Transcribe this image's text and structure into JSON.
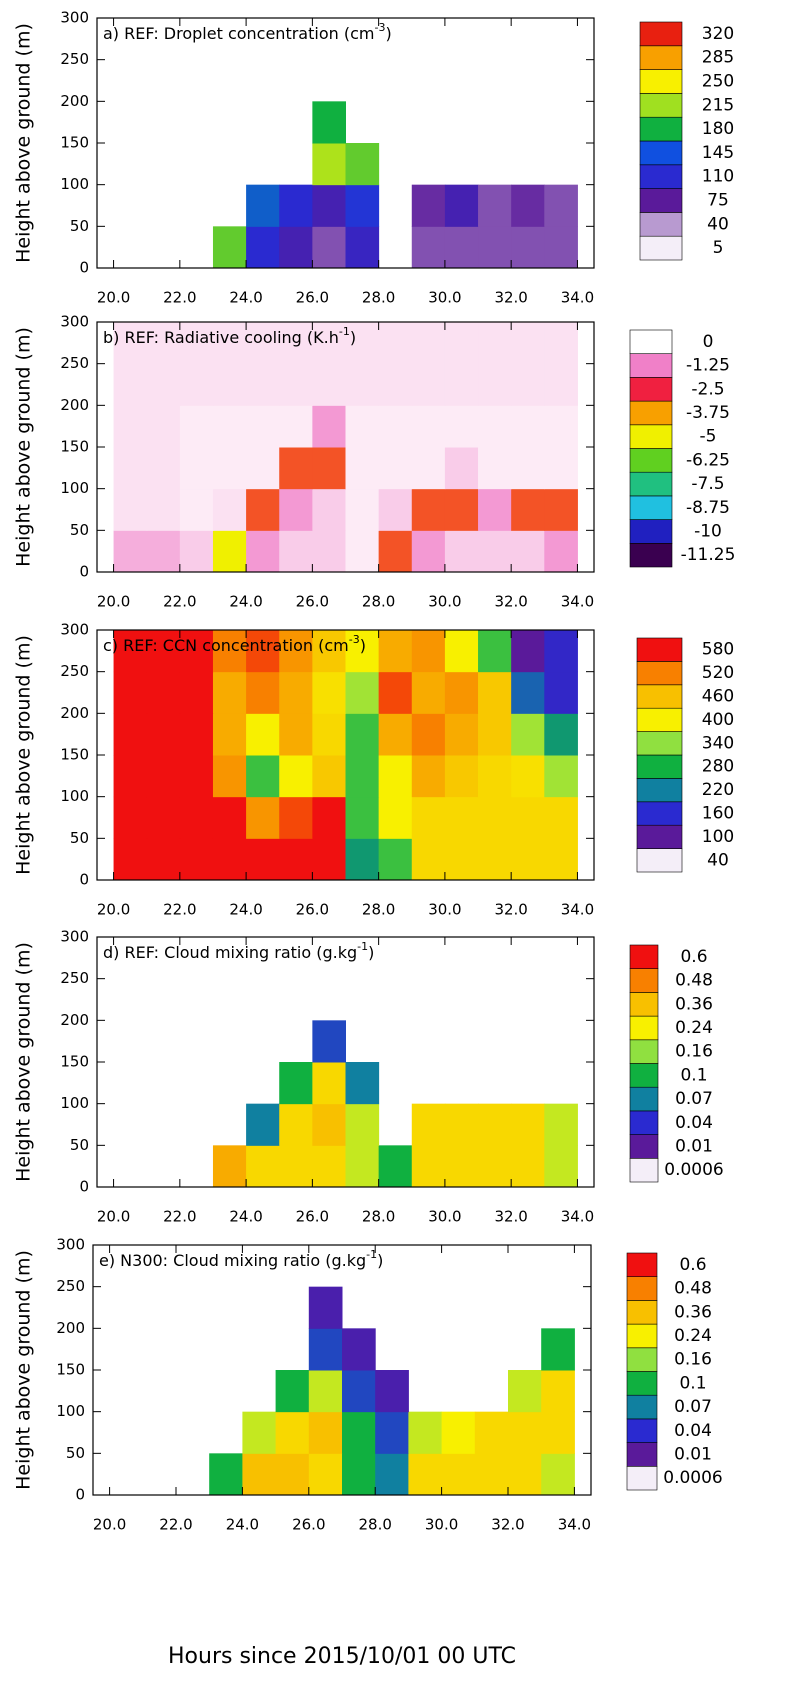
{
  "chart_data": [
    {
      "type": "heatmap",
      "title": "a) REF: Droplet concentration (cm",
      "title_sup": "-3",
      "title_end": ")",
      "ylabel": "Height above ground (m)",
      "xlim": [
        19.5,
        34.5
      ],
      "ylim": [
        0,
        300
      ],
      "xticks": [
        {
          "value": 20,
          "label": "20.0"
        },
        {
          "value": 22,
          "label": "22.0"
        },
        {
          "value": 24,
          "label": "24.0"
        },
        {
          "value": 26,
          "label": "26.0"
        },
        {
          "value": 28,
          "label": "28.0"
        },
        {
          "value": 30,
          "label": "30.0"
        },
        {
          "value": 32,
          "label": "32.0"
        },
        {
          "value": 34,
          "label": "34.0"
        }
      ],
      "yticks": [
        0,
        50,
        100,
        150,
        200,
        250,
        300
      ],
      "x": [
        20.5,
        21.5,
        22.5,
        23.5,
        24.5,
        25.5,
        26.5,
        27.5,
        28.5,
        29.5,
        30.5,
        31.5,
        32.5,
        33.5
      ],
      "y": [
        25,
        75,
        125,
        175,
        225,
        275
      ],
      "values": [
        [
          null,
          null,
          null,
          200,
          110,
          90,
          60,
          100,
          null,
          60,
          60,
          60,
          60,
          60
        ],
        [
          null,
          null,
          null,
          null,
          150,
          110,
          90,
          120,
          null,
          70,
          90,
          60,
          70,
          60
        ],
        [
          null,
          null,
          null,
          null,
          null,
          null,
          220,
          200,
          null,
          null,
          null,
          null,
          null,
          null
        ],
        [
          null,
          null,
          null,
          null,
          null,
          null,
          180,
          null,
          null,
          null,
          null,
          null,
          null,
          null
        ],
        [
          null,
          null,
          null,
          null,
          null,
          null,
          null,
          null,
          null,
          null,
          null,
          null,
          null,
          null
        ],
        [
          null,
          null,
          null,
          null,
          null,
          null,
          null,
          null,
          null,
          null,
          null,
          null,
          null,
          null
        ]
      ],
      "colorbar": {
        "levels": [
          5,
          40,
          75,
          110,
          145,
          180,
          215,
          250,
          285,
          320
        ],
        "colors": [
          "#f4eef8",
          "#b89ad0",
          "#5a1a9a",
          "#2a2ad0",
          "#1050e0",
          "#10b040",
          "#a0e020",
          "#f8f000",
          "#f8a000",
          "#e82010"
        ]
      }
    },
    {
      "type": "heatmap",
      "title": "b) REF: Radiative cooling (K.h",
      "title_sup": "-1",
      "title_end": ")",
      "ylabel": "Height above ground (m)",
      "xlim": [
        19.5,
        34.5
      ],
      "ylim": [
        0,
        300
      ],
      "xticks": [
        {
          "value": 20,
          "label": "20.0"
        },
        {
          "value": 22,
          "label": "22.0"
        },
        {
          "value": 24,
          "label": "24.0"
        },
        {
          "value": 26,
          "label": "26.0"
        },
        {
          "value": 28,
          "label": "28.0"
        },
        {
          "value": 30,
          "label": "30.0"
        },
        {
          "value": 32,
          "label": "32.0"
        },
        {
          "value": 34,
          "label": "34.0"
        }
      ],
      "yticks": [
        0,
        50,
        100,
        150,
        200,
        250,
        300
      ],
      "x": [
        20.5,
        21.5,
        22.5,
        23.5,
        24.5,
        25.5,
        26.5,
        27.5,
        28.5,
        29.5,
        30.5,
        31.5,
        32.5,
        33.5
      ],
      "y": [
        25,
        75,
        125,
        175,
        225,
        275
      ],
      "values": [
        [
          -0.8,
          -0.8,
          -0.5,
          -5,
          -1,
          -0.5,
          -0.5,
          -0.2,
          -3,
          -1,
          -0.5,
          -0.5,
          -0.5,
          -1
        ],
        [
          -0.3,
          -0.3,
          -0.2,
          -0.3,
          -3,
          -1,
          -0.5,
          -0.2,
          -0.5,
          -3,
          -3,
          -1,
          -3,
          -3
        ],
        [
          -0.3,
          -0.3,
          -0.2,
          -0.2,
          -0.2,
          -3,
          -3,
          -0.2,
          -0.2,
          -0.2,
          -0.5,
          -0.2,
          -0.2,
          -0.2
        ],
        [
          -0.3,
          -0.3,
          -0.2,
          -0.2,
          -0.2,
          -0.2,
          -1,
          -0.2,
          -0.2,
          -0.2,
          -0.2,
          -0.2,
          -0.2,
          -0.2
        ],
        [
          -0.3,
          -0.3,
          -0.3,
          -0.3,
          -0.3,
          -0.3,
          -0.3,
          -0.3,
          -0.3,
          -0.3,
          -0.3,
          -0.3,
          -0.3,
          -0.3
        ],
        [
          -0.3,
          -0.3,
          -0.3,
          -0.3,
          -0.3,
          -0.3,
          -0.3,
          -0.3,
          -0.3,
          -0.3,
          -0.3,
          -0.3,
          -0.3,
          -0.3
        ]
      ],
      "colorbar": {
        "levels": [
          -11.25,
          -10,
          -8.75,
          -7.5,
          -6.25,
          -5,
          -3.75,
          -2.5,
          -1.25,
          0
        ],
        "colors": [
          "#3a0050",
          "#2020c0",
          "#20c0e0",
          "#20c080",
          "#60d020",
          "#f0f000",
          "#f8a000",
          "#f02040",
          "#f080c8",
          "#ffffff"
        ]
      }
    },
    {
      "type": "heatmap",
      "title": "c) REF: CCN concentration (cm",
      "title_sup": "-3",
      "title_end": ")",
      "ylabel": "Height above ground (m)",
      "xlim": [
        19.5,
        34.5
      ],
      "ylim": [
        0,
        300
      ],
      "xticks": [
        {
          "value": 20,
          "label": "20.0"
        },
        {
          "value": 22,
          "label": "22.0"
        },
        {
          "value": 24,
          "label": "24.0"
        },
        {
          "value": 26,
          "label": "26.0"
        },
        {
          "value": 28,
          "label": "28.0"
        },
        {
          "value": 30,
          "label": "30.0"
        },
        {
          "value": 32,
          "label": "32.0"
        },
        {
          "value": 34,
          "label": "34.0"
        }
      ],
      "yticks": [
        0,
        50,
        100,
        150,
        200,
        250,
        300
      ],
      "x": [
        20.5,
        21.5,
        22.5,
        23.5,
        24.5,
        25.5,
        26.5,
        27.5,
        28.5,
        29.5,
        30.5,
        31.5,
        32.5,
        33.5
      ],
      "y": [
        25,
        75,
        125,
        175,
        225,
        275
      ],
      "values": [
        [
          600,
          600,
          600,
          600,
          600,
          600,
          600,
          250,
          300,
          430,
          430,
          430,
          430,
          430
        ],
        [
          600,
          600,
          600,
          600,
          500,
          550,
          600,
          300,
          400,
          430,
          430,
          430,
          430,
          430
        ],
        [
          600,
          600,
          600,
          500,
          300,
          400,
          450,
          300,
          400,
          480,
          450,
          430,
          420,
          350
        ],
        [
          600,
          600,
          600,
          480,
          400,
          480,
          430,
          300,
          480,
          520,
          480,
          450,
          350,
          250
        ],
        [
          600,
          600,
          600,
          480,
          520,
          480,
          420,
          350,
          550,
          480,
          500,
          450,
          200,
          150
        ],
        [
          600,
          600,
          600,
          520,
          550,
          500,
          450,
          400,
          480,
          500,
          400,
          300,
          100,
          150
        ]
      ],
      "colorbar": {
        "levels": [
          40,
          100,
          160,
          220,
          280,
          340,
          400,
          460,
          520,
          580
        ],
        "colors": [
          "#f4eef8",
          "#5a1a9a",
          "#2a2ad0",
          "#1080a0",
          "#10b040",
          "#90e040",
          "#f8f000",
          "#f8c000",
          "#f88000",
          "#f01010"
        ]
      }
    },
    {
      "type": "heatmap",
      "title": "d) REF: Cloud mixing ratio (g.kg",
      "title_sup": "-1",
      "title_end": ")",
      "ylabel": "Height above ground (m)",
      "xlim": [
        19.5,
        34.5
      ],
      "ylim": [
        0,
        300
      ],
      "xticks": [
        {
          "value": 20,
          "label": "20.0"
        },
        {
          "value": 22,
          "label": "22.0"
        },
        {
          "value": 24,
          "label": "24.0"
        },
        {
          "value": 26,
          "label": "26.0"
        },
        {
          "value": 28,
          "label": "28.0"
        },
        {
          "value": 30,
          "label": "30.0"
        },
        {
          "value": 32,
          "label": "32.0"
        },
        {
          "value": 34,
          "label": "34.0"
        }
      ],
      "yticks": [
        0,
        50,
        100,
        150,
        200,
        250,
        300
      ],
      "x": [
        20.5,
        21.5,
        22.5,
        23.5,
        24.5,
        25.5,
        26.5,
        27.5,
        28.5,
        29.5,
        30.5,
        31.5,
        32.5,
        33.5
      ],
      "y": [
        25,
        75,
        125,
        175,
        225,
        275
      ],
      "values": [
        [
          null,
          null,
          null,
          0.4,
          0.3,
          0.3,
          0.3,
          0.2,
          0.1,
          0.3,
          0.3,
          0.3,
          0.3,
          0.2
        ],
        [
          null,
          null,
          null,
          null,
          0.07,
          0.3,
          0.36,
          0.2,
          null,
          0.3,
          0.3,
          0.3,
          0.3,
          0.2
        ],
        [
          null,
          null,
          null,
          null,
          null,
          0.1,
          0.3,
          0.07,
          null,
          null,
          null,
          null,
          null,
          null
        ],
        [
          null,
          null,
          null,
          null,
          null,
          null,
          0.05,
          null,
          null,
          null,
          null,
          null,
          null,
          null
        ],
        [
          null,
          null,
          null,
          null,
          null,
          null,
          null,
          null,
          null,
          null,
          null,
          null,
          null,
          null
        ],
        [
          null,
          null,
          null,
          null,
          null,
          null,
          null,
          null,
          null,
          null,
          null,
          null,
          null,
          null
        ]
      ],
      "colorbar": {
        "levels": [
          0.0006,
          0.01,
          0.04,
          0.07,
          0.1,
          0.16,
          0.24,
          0.36,
          0.48,
          0.6
        ],
        "colors": [
          "#f4eef8",
          "#5a1a9a",
          "#2a2ad0",
          "#1080a0",
          "#10b040",
          "#90e040",
          "#f8f000",
          "#f8c000",
          "#f88000",
          "#f01010"
        ]
      }
    },
    {
      "type": "heatmap",
      "title": "e) N300: Cloud mixing ratio (g.kg",
      "title_sup": "-1",
      "title_end": ")",
      "ylabel": "Height above ground (m)",
      "xlabel": "Hours since 2015/10/01 00 UTC",
      "xlim": [
        19.5,
        34.5
      ],
      "ylim": [
        0,
        300
      ],
      "xticks": [
        {
          "value": 20,
          "label": "20.0"
        },
        {
          "value": 22,
          "label": "22.0"
        },
        {
          "value": 24,
          "label": "24.0"
        },
        {
          "value": 26,
          "label": "26.0"
        },
        {
          "value": 28,
          "label": "28.0"
        },
        {
          "value": 30,
          "label": "30.0"
        },
        {
          "value": 32,
          "label": "32.0"
        },
        {
          "value": 34,
          "label": "34.0"
        }
      ],
      "yticks": [
        0,
        50,
        100,
        150,
        200,
        250,
        300
      ],
      "x": [
        20.5,
        21.5,
        22.5,
        23.5,
        24.5,
        25.5,
        26.5,
        27.5,
        28.5,
        29.5,
        30.5,
        31.5,
        32.5,
        33.5
      ],
      "y": [
        25,
        75,
        125,
        175,
        225,
        275
      ],
      "values": [
        [
          null,
          null,
          null,
          0.1,
          0.36,
          0.36,
          0.3,
          0.1,
          0.07,
          0.3,
          0.3,
          0.3,
          0.3,
          0.2
        ],
        [
          null,
          null,
          null,
          null,
          0.2,
          0.3,
          0.36,
          0.1,
          0.05,
          0.2,
          0.24,
          0.3,
          0.3,
          0.3
        ],
        [
          null,
          null,
          null,
          null,
          null,
          0.1,
          0.2,
          0.05,
          0.02,
          null,
          null,
          null,
          0.2,
          0.3
        ],
        [
          null,
          null,
          null,
          null,
          null,
          null,
          0.05,
          0.02,
          null,
          null,
          null,
          null,
          null,
          0.1
        ],
        [
          null,
          null,
          null,
          null,
          null,
          null,
          0.02,
          null,
          null,
          null,
          null,
          null,
          null,
          null
        ],
        [
          null,
          null,
          null,
          null,
          null,
          null,
          null,
          null,
          null,
          null,
          null,
          null,
          null,
          null
        ]
      ],
      "colorbar": {
        "levels": [
          0.0006,
          0.01,
          0.04,
          0.07,
          0.1,
          0.16,
          0.24,
          0.36,
          0.48,
          0.6
        ],
        "colors": [
          "#f4eef8",
          "#5a1a9a",
          "#2a2ad0",
          "#1080a0",
          "#10b040",
          "#90e040",
          "#f8f000",
          "#f8c000",
          "#f88000",
          "#f01010"
        ]
      }
    }
  ]
}
